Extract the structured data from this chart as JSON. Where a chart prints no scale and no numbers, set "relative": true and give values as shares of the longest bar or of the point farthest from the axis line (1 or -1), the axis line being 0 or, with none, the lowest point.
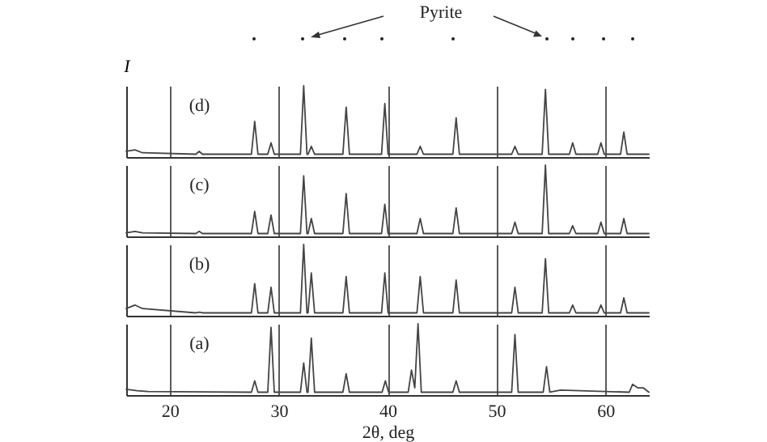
{
  "chart_data": [
    {
      "type": "line",
      "title": "Pyrite",
      "ylabel": "I",
      "relative": true,
      "annotations": [
        "(d)"
      ],
      "grid": "x",
      "tick_labels": false,
      "xlim": [
        16,
        64
      ],
      "xticks": [
        20,
        30,
        40,
        50,
        60
      ],
      "x": [
        16,
        16.8,
        17.5,
        22.4,
        22.7,
        23.0,
        27.5,
        27.8,
        28.1,
        29.0,
        29.3,
        29.6,
        32.0,
        32.3,
        32.6,
        32.7,
        33.0,
        33.3,
        35.9,
        36.2,
        36.5,
        39.45,
        39.75,
        40.05,
        42.7,
        43.0,
        43.3,
        46.0,
        46.3,
        46.6,
        51.4,
        51.7,
        52.0,
        54.2,
        54.5,
        54.8,
        56.7,
        57.0,
        57.3,
        59.3,
        59.6,
        59.9,
        61.4,
        61.7,
        62.0,
        64
      ],
      "series": [
        {
          "color": "#444444",
          "values": [
            0.08,
            0.1,
            0.06,
            0.04,
            0.08,
            0.04,
            0.04,
            0.5,
            0.04,
            0.04,
            0.2,
            0.04,
            0.04,
            1,
            0.04,
            0.04,
            0.15,
            0.04,
            0.04,
            0.7,
            0.04,
            0.04,
            0.75,
            0.04,
            0.04,
            0.15,
            0.04,
            0.04,
            0.55,
            0.04,
            0.04,
            0.15,
            0.04,
            0.04,
            0.95,
            0.04,
            0.04,
            0.2,
            0.04,
            0.04,
            0.2,
            0.04,
            0.04,
            0.35,
            0.04,
            0.04
          ]
        }
      ]
    },
    {
      "type": "line",
      "relative": true,
      "annotations": [
        "(c)"
      ],
      "grid": "x",
      "tick_labels": false,
      "xlim": [
        16,
        64
      ],
      "xticks": [
        20,
        30,
        40,
        50,
        60
      ],
      "x": [
        16,
        16.8,
        17.5,
        22.4,
        22.7,
        23.0,
        27.5,
        27.8,
        28.1,
        29.0,
        29.3,
        29.6,
        32.0,
        32.3,
        32.6,
        32.7,
        33.0,
        33.3,
        35.9,
        36.2,
        36.5,
        39.45,
        39.75,
        40.05,
        42.7,
        43.0,
        43.3,
        46.0,
        46.3,
        46.6,
        51.4,
        51.7,
        52.0,
        54.2,
        54.5,
        54.8,
        56.7,
        57.0,
        57.3,
        59.3,
        59.6,
        59.9,
        61.4,
        61.7,
        62.0,
        64
      ],
      "series": [
        {
          "color": "#444444",
          "values": [
            0.05,
            0.07,
            0.05,
            0.04,
            0.07,
            0.04,
            0.04,
            0.35,
            0.04,
            0.04,
            0.3,
            0.04,
            0.04,
            0.85,
            0.04,
            0.04,
            0.25,
            0.04,
            0.04,
            0.6,
            0.04,
            0.04,
            0.45,
            0.04,
            0.04,
            0.25,
            0.04,
            0.04,
            0.4,
            0.04,
            0.04,
            0.2,
            0.04,
            0.04,
            1,
            0.04,
            0.04,
            0.15,
            0.04,
            0.04,
            0.2,
            0.04,
            0.04,
            0.25,
            0.04,
            0.04
          ]
        }
      ]
    },
    {
      "type": "line",
      "relative": true,
      "annotations": [
        "(b)"
      ],
      "grid": "x",
      "tick_labels": false,
      "xlim": [
        16,
        64
      ],
      "xticks": [
        20,
        30,
        40,
        50,
        60
      ],
      "x": [
        16,
        16.8,
        17.5,
        22.4,
        22.7,
        23.0,
        27.5,
        27.8,
        28.1,
        29.0,
        29.3,
        29.6,
        32.0,
        32.3,
        32.6,
        32.7,
        33.0,
        33.3,
        35.9,
        36.2,
        36.5,
        39.45,
        39.75,
        40.05,
        42.7,
        43.0,
        43.3,
        46.0,
        46.3,
        46.6,
        51.4,
        51.7,
        52.0,
        54.2,
        54.5,
        54.8,
        56.7,
        57.0,
        57.3,
        59.3,
        59.6,
        59.9,
        61.4,
        61.7,
        62.0,
        64
      ],
      "series": [
        {
          "color": "#444444",
          "values": [
            0.1,
            0.15,
            0.1,
            0.04,
            0.05,
            0.04,
            0.04,
            0.45,
            0.04,
            0.04,
            0.4,
            0.04,
            0.04,
            1,
            0.04,
            0.04,
            0.6,
            0.04,
            0.04,
            0.55,
            0.04,
            0.04,
            0.6,
            0.04,
            0.04,
            0.55,
            0.04,
            0.04,
            0.5,
            0.04,
            0.04,
            0.4,
            0.04,
            0.04,
            0.8,
            0.04,
            0.04,
            0.15,
            0.04,
            0.04,
            0.15,
            0.04,
            0.04,
            0.25,
            0.04,
            0.04
          ]
        }
      ]
    },
    {
      "type": "line",
      "xlabel": "2θ, deg",
      "relative": true,
      "annotations": [
        "(a)"
      ],
      "grid": "x",
      "tick_labels": "x",
      "xlim": [
        16,
        64
      ],
      "xticks": [
        20,
        30,
        40,
        50,
        60
      ],
      "x": [
        16,
        17,
        18,
        27.5,
        27.8,
        28.1,
        29.0,
        29.3,
        29.6,
        32.0,
        32.3,
        32.6,
        32.7,
        33.0,
        33.3,
        35.9,
        36.2,
        36.5,
        39.5,
        39.8,
        40.1,
        41.9,
        42.2,
        42.5,
        42.8,
        43.1,
        46.0,
        46.3,
        46.6,
        51.4,
        51.7,
        52.0,
        54.3,
        54.6,
        54.9,
        55.9,
        62.2,
        62.5,
        63.0,
        63.5,
        64
      ],
      "series": [
        {
          "color": "#444444",
          "values": [
            0.08,
            0.06,
            0.05,
            0.04,
            0.2,
            0.04,
            0.04,
            0.95,
            0.04,
            0.04,
            0.45,
            0.04,
            0.04,
            0.8,
            0.04,
            0.04,
            0.3,
            0.04,
            0.04,
            0.2,
            0.04,
            0.04,
            0.35,
            0.1,
            1,
            0.04,
            0.04,
            0.2,
            0.04,
            0.04,
            0.85,
            0.04,
            0.04,
            0.4,
            0.04,
            0.07,
            0.04,
            0.15,
            0.1,
            0.1,
            0.04
          ]
        }
      ]
    }
  ]
}
